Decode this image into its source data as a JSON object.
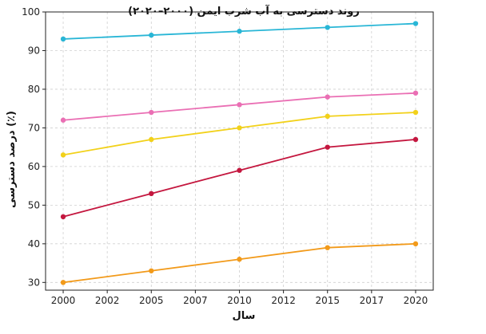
{
  "chart_data": {
    "type": "line",
    "title": "روند دسترسی به آب شرب ایمن (۲۰۰۰–۲۰۲۰)",
    "xlabel": "سال",
    "ylabel": "درصد دسترسی (٪)",
    "x": [
      2000,
      2005,
      2010,
      2015,
      2020
    ],
    "xticks": [
      "2000",
      "2002",
      "2005",
      "2007",
      "2010",
      "2012",
      "2015",
      "2017",
      "2020"
    ],
    "xtick_values": [
      2000,
      2002.5,
      2005,
      2007.5,
      2010,
      2012.5,
      2015,
      2017.5,
      2020
    ],
    "yticks": [
      "30",
      "40",
      "50",
      "60",
      "70",
      "80",
      "90",
      "100"
    ],
    "xlim": [
      1999,
      2021
    ],
    "ylim": [
      28,
      100
    ],
    "grid": true,
    "series": [
      {
        "color": "#29b6d6",
        "values": [
          93,
          94,
          95,
          96,
          97
        ]
      },
      {
        "color": "#ea6fb4",
        "values": [
          72,
          74,
          76,
          78,
          79
        ]
      },
      {
        "color": "#f2d11a",
        "values": [
          63,
          67,
          70,
          73,
          74
        ]
      },
      {
        "color": "#c4173f",
        "values": [
          47,
          53,
          59,
          65,
          67
        ]
      },
      {
        "color": "#f29a1a",
        "values": [
          30,
          33,
          36,
          39,
          40
        ]
      }
    ]
  }
}
